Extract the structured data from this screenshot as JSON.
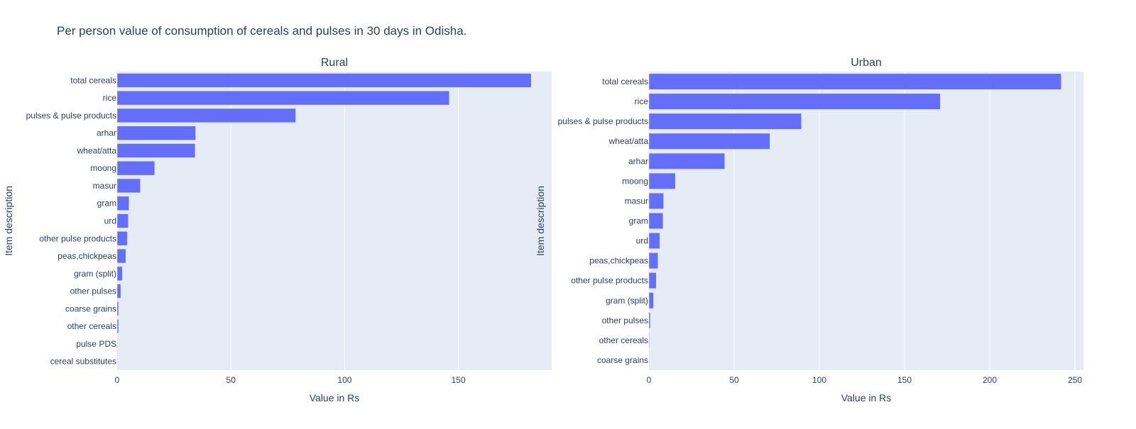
{
  "title": "Per person value of consumption of cereals and pulses in 30 days in Odisha.",
  "colors": {
    "bar": "#636efa",
    "plot_bg": "#e5ecf6",
    "grid": "#ffffff",
    "text": "#2a3f5f"
  },
  "chart_data": [
    {
      "type": "bar",
      "orientation": "horizontal",
      "title": "Rural",
      "xlabel": "Value in Rs",
      "ylabel": "Item description",
      "xlim": [
        0,
        191
      ],
      "xticks": [
        0,
        50,
        100,
        150
      ],
      "grid": true,
      "categories": [
        "total cereals",
        "rice",
        "pulses & pulse products",
        "arhar",
        "wheat/atta",
        "moong",
        "masur",
        "gram",
        "urd",
        "other pulse products",
        "peas,chickpeas",
        "gram (split)",
        "other pulses",
        "coarse grains",
        "other cereals",
        "pulse PDS",
        "cereal substitutes"
      ],
      "values": [
        182,
        146,
        78.5,
        34.5,
        34.3,
        16.5,
        10.2,
        5.2,
        4.9,
        4.5,
        3.8,
        2.3,
        1.6,
        0.6,
        0.6,
        0.05,
        0.02
      ]
    },
    {
      "type": "bar",
      "orientation": "horizontal",
      "title": "Urban",
      "xlabel": "Value in Rs",
      "ylabel": "Item description",
      "xlim": [
        0,
        255
      ],
      "xticks": [
        0,
        50,
        100,
        150,
        200,
        250
      ],
      "grid": true,
      "categories": [
        "total cereals",
        "rice",
        "pulses & pulse products",
        "wheat/atta",
        "arhar",
        "moong",
        "masur",
        "gram",
        "urd",
        "peas,chickpeas",
        "other pulse products",
        "gram (split)",
        "other pulses",
        "other cereals",
        "coarse grains"
      ],
      "values": [
        242,
        171,
        89.5,
        71,
        44.5,
        15.5,
        8.6,
        8.3,
        6.4,
        5.3,
        4.3,
        2.7,
        0.8,
        0.3,
        0.2
      ]
    }
  ]
}
